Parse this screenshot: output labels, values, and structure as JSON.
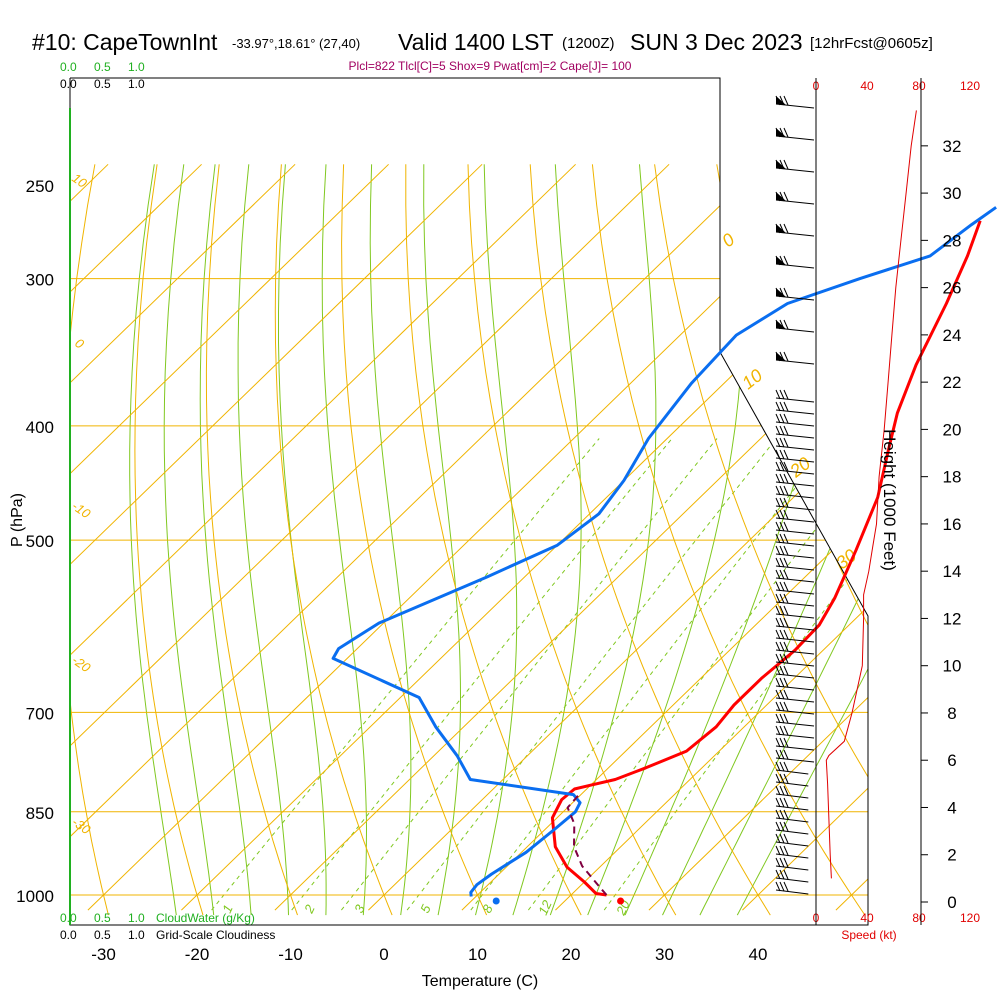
{
  "header": {
    "station": "#10: CapeTownInt",
    "coords": "-33.97°,18.61° (27,40)",
    "valid": "Valid 1400 LST",
    "zulu": "(1200Z)",
    "date": "SUN 3 Dec 2023",
    "forecast": "[12hrFcst@0605z]"
  },
  "indices": "Plcl=822 Tlcl[C]=5 Shox=9 Pwat[cm]=2 Cape[J]= 100",
  "colors": {
    "temperature": "#ff0000",
    "dewpoint": "#0a6ef0",
    "parcel": "#800040",
    "isotherm": "#f0b400",
    "dry_adiabat": "#f0b400",
    "moist_adiabat": "#80c820",
    "mixing_ratio": "#80c820",
    "cloudwater": "#20b020",
    "wind_speed": "#e00000",
    "indices_text": "#a00060"
  },
  "chart_data": {
    "type": "line",
    "title": "#10: CapeTownInt  Valid 1400 LST (1200Z) SUN 3 Dec 2023",
    "xlabel": "Temperature (C)",
    "ylabel": "P (hPa)",
    "xlim": [
      -35,
      36
    ],
    "x_ticks": [
      -30,
      -20,
      -10,
      0,
      10,
      20,
      30,
      40
    ],
    "y_scale": "log",
    "ylim": [
      1020,
      250
    ],
    "y_ticks": [
      250,
      300,
      400,
      500,
      700,
      850,
      1000
    ],
    "grid": true,
    "series": [
      {
        "key": "temperature",
        "points": [
          [
            23.8,
            1000
          ],
          [
            22.5,
            997
          ],
          [
            20,
            975
          ],
          [
            16.5,
            947
          ],
          [
            13,
            910
          ],
          [
            9.5,
            860
          ],
          [
            8.5,
            830
          ],
          [
            8.7,
            813
          ],
          [
            10,
            807
          ],
          [
            12,
            798
          ],
          [
            14,
            780
          ],
          [
            16.5,
            755
          ],
          [
            17,
            720
          ],
          [
            16.5,
            690
          ],
          [
            16.5,
            655
          ],
          [
            17,
            620
          ],
          [
            16.8,
            590
          ],
          [
            15.5,
            560
          ],
          [
            12.5,
            510
          ],
          [
            9,
            460
          ],
          [
            5,
            420
          ],
          [
            1.8,
            390
          ],
          [
            -1.5,
            355
          ],
          [
            -5,
            315
          ],
          [
            -8,
            287
          ],
          [
            -10.5,
            268
          ]
        ]
      },
      {
        "key": "dewpoint",
        "points": [
          [
            9.5,
            1003
          ],
          [
            9.0,
            995
          ],
          [
            8.8,
            980
          ],
          [
            9.2,
            960
          ],
          [
            10.5,
            920
          ],
          [
            11,
            880
          ],
          [
            11.3,
            850
          ],
          [
            10.8,
            835
          ],
          [
            9.2,
            822
          ],
          [
            -3.5,
            798
          ],
          [
            -7.5,
            762
          ],
          [
            -13,
            720
          ],
          [
            -18,
            680
          ],
          [
            -31.5,
            630
          ],
          [
            -32,
            618
          ],
          [
            -30.5,
            588
          ],
          [
            -24,
            537
          ],
          [
            -20,
            505
          ],
          [
            -19,
            475
          ],
          [
            -20,
            445
          ],
          [
            -22,
            410
          ],
          [
            -23.5,
            368
          ],
          [
            -24,
            335
          ],
          [
            -22,
            315
          ],
          [
            -17,
            300
          ],
          [
            -12,
            287
          ],
          [
            -11,
            270
          ],
          [
            -10.3,
            261
          ]
        ]
      },
      {
        "key": "parcel",
        "points": [
          [
            23.8,
            1000
          ],
          [
            21.5,
            978
          ],
          [
            18,
            945
          ],
          [
            15,
            910
          ],
          [
            12.5,
            870
          ],
          [
            10,
            843
          ],
          [
            9.8,
            823
          ]
        ]
      }
    ],
    "surface_points": [
      {
        "name": "dewpoint",
        "t": 12,
        "p": 1000
      },
      {
        "name": "temperature",
        "t": 25.3,
        "p": 1000
      }
    ],
    "isotherm_labels": [
      "0",
      "10",
      "20",
      "30"
    ],
    "dry_adiabat_labels": [
      "10",
      "0",
      "-10",
      "-20",
      "-30"
    ],
    "mixing_ratio_labels": [
      "1",
      "2",
      "3",
      "5",
      "8",
      "12",
      "20"
    ],
    "height_axis": {
      "label": "Height (1000 Feet)",
      "ticks": [
        "0",
        "2",
        "4",
        "6",
        "8",
        "10",
        "12",
        "14",
        "16",
        "18",
        "20",
        "22",
        "24",
        "26",
        "28",
        "30",
        "32"
      ]
    },
    "wind_speed_axis": {
      "label": "Speed (kt)",
      "ticks": [
        "0",
        "40",
        "80",
        "120"
      ]
    },
    "wind_speed_profile": [
      [
        12,
        1
      ],
      [
        11,
        2
      ],
      [
        10,
        3.5
      ],
      [
        9,
        5
      ],
      [
        8,
        6
      ],
      [
        10,
        6.2
      ],
      [
        22,
        6.8
      ],
      [
        28,
        8
      ],
      [
        36,
        10
      ],
      [
        37,
        12
      ],
      [
        37,
        13
      ],
      [
        41,
        14
      ],
      [
        44,
        15
      ],
      [
        47,
        16
      ],
      [
        49,
        18
      ],
      [
        53,
        20
      ],
      [
        56,
        22
      ],
      [
        59,
        24
      ],
      [
        62,
        26
      ],
      [
        66,
        28
      ],
      [
        70,
        30
      ],
      [
        74,
        32
      ],
      [
        78,
        33.5
      ]
    ],
    "cloudwater_axis": {
      "label": "CloudWater (g/Kg)",
      "ticks": [
        "0.0",
        "0.5",
        "1.0"
      ]
    },
    "cloudiness_axis": {
      "label": "Grid-Scale Cloudiness",
      "ticks": [
        "0.0",
        "0.5",
        "1.0"
      ]
    }
  }
}
